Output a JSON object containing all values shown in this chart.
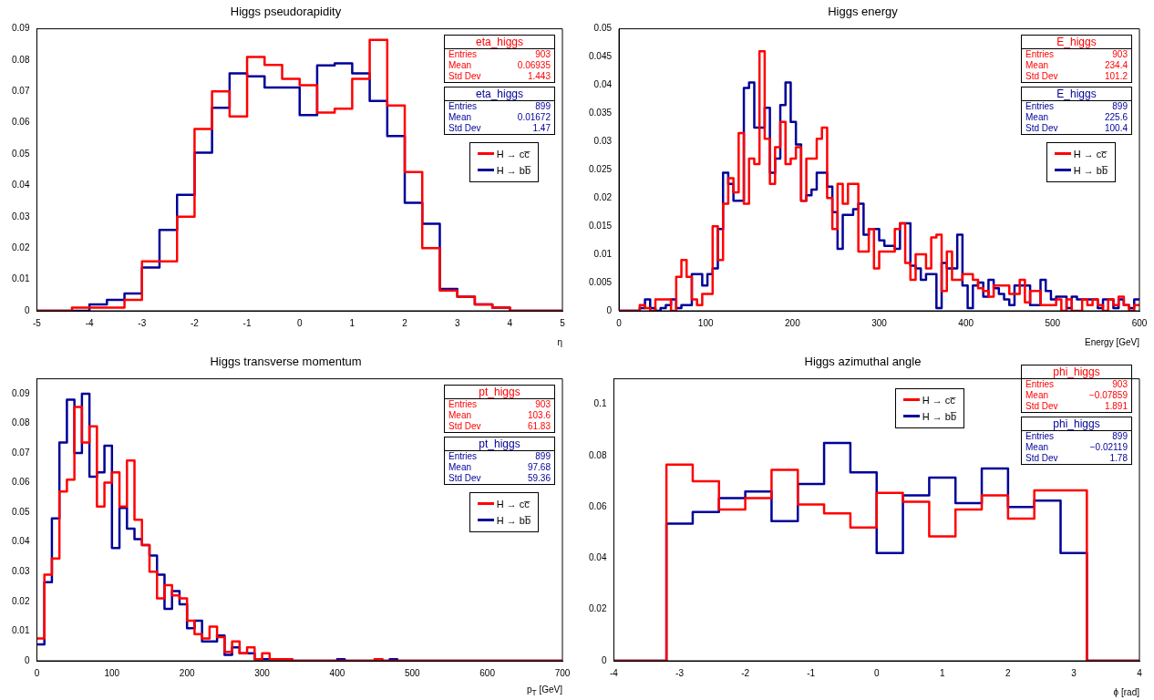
{
  "chart_data": [
    {
      "type": "histogram",
      "title": "Higgs pseudorapidity",
      "xlabel": "η",
      "legend": "right",
      "bins": [
        -5,
        -4.667,
        -4.333,
        -4,
        -3.667,
        -3.333,
        -3,
        -2.667,
        -2.333,
        -2,
        -1.667,
        -1.333,
        -1,
        -0.667,
        -0.333,
        0,
        0.333,
        0.667,
        1,
        1.333,
        1.667,
        2,
        2.333,
        2.667,
        3,
        3.333,
        3.667,
        4,
        4.333,
        4.667,
        5
      ],
      "series": [
        {
          "name": "H → cc̅",
          "color": "#ff0000",
          "values": [
            0,
            0,
            0.001,
            0.001,
            0.001,
            0.0035,
            0.0158,
            0.0158,
            0.03,
            0.058,
            0.07,
            0.062,
            0.081,
            0.0785,
            0.074,
            0.072,
            0.0633,
            0.0645,
            0.074,
            0.0865,
            0.0655,
            0.0443,
            0.02,
            0.0065,
            0.0045,
            0.002,
            0.001,
            0,
            0,
            0
          ]
        },
        {
          "name": "H → bb̅",
          "color": "#000099",
          "values": [
            0,
            0,
            0,
            0.002,
            0.0035,
            0.0055,
            0.0138,
            0.0258,
            0.037,
            0.0505,
            0.0648,
            0.0758,
            0.0748,
            0.0713,
            0.0713,
            0.0625,
            0.0783,
            0.079,
            0.0758,
            0.067,
            0.0558,
            0.0345,
            0.0278,
            0.007,
            0.0045,
            0.002,
            0.001,
            0,
            0,
            0
          ]
        }
      ],
      "xlim": [
        -5,
        5
      ],
      "xticks": [
        -5,
        -4,
        -3,
        -2,
        -1,
        0,
        1,
        2,
        3,
        4,
        5
      ],
      "ylim": [
        0,
        0.09
      ],
      "yticks": [
        0,
        0.01,
        0.02,
        0.03,
        0.04,
        0.05,
        0.06,
        0.07,
        0.08,
        0.09
      ],
      "annotations": [
        "eta_higgs",
        "Entries",
        "903",
        "Mean",
        "0.06935",
        "Std Dev",
        "1.443",
        "eta_higgs",
        "Entries",
        "899",
        "Mean",
        "0.01672",
        "Std Dev",
        "1.47"
      ]
    },
    {
      "type": "histogram",
      "title": "Higgs energy",
      "xlabel": "Energy [GeV]",
      "legend": "right",
      "bins": [
        0,
        6,
        12,
        18,
        24,
        30,
        36,
        42,
        48,
        54,
        60,
        66,
        72,
        78,
        84,
        90,
        96,
        102,
        108,
        114,
        120,
        126,
        132,
        138,
        144,
        150,
        156,
        162,
        168,
        174,
        180,
        186,
        192,
        198,
        204,
        210,
        216,
        222,
        228,
        234,
        240,
        246,
        252,
        258,
        264,
        270,
        276,
        282,
        288,
        294,
        300,
        306,
        312,
        318,
        324,
        330,
        336,
        342,
        348,
        354,
        360,
        366,
        372,
        378,
        384,
        390,
        396,
        402,
        408,
        414,
        420,
        426,
        432,
        438,
        444,
        450,
        456,
        462,
        468,
        474,
        480,
        486,
        492,
        498,
        504,
        510,
        516,
        522,
        528,
        534,
        540,
        546,
        552,
        558,
        564,
        570,
        576,
        582,
        588,
        594,
        600
      ],
      "series": [
        {
          "name": "H → cc̅",
          "color": "#ff0000",
          "values": [
            0,
            0,
            0,
            0,
            0.001,
            0.0005,
            0,
            0.002,
            0.002,
            0.002,
            0,
            0.006,
            0.009,
            0.006,
            0.002,
            0.001,
            0.003,
            0.003,
            0.015,
            0.009,
            0.019,
            0.0235,
            0.021,
            0.0315,
            0.019,
            0.027,
            0.026,
            0.046,
            0.0305,
            0.0225,
            0.029,
            0.0335,
            0.026,
            0.027,
            0.029,
            0.0195,
            0.027,
            0.027,
            0.0305,
            0.0325,
            0.02,
            0.0145,
            0.0225,
            0.019,
            0.0225,
            0.0225,
            0.0105,
            0.0105,
            0.0145,
            0.0075,
            0.0105,
            0.0105,
            0.0105,
            0.0145,
            0.0155,
            0.0085,
            0.0055,
            0.01,
            0.01,
            0.0075,
            0.013,
            0.0135,
            0.0035,
            0.0105,
            0.0055,
            0.0055,
            0.0065,
            0.0065,
            0.0055,
            0.004,
            0.0035,
            0.0025,
            0.0045,
            0.0045,
            0.0045,
            0.003,
            0.003,
            0.0055,
            0.0015,
            0.0035,
            0.0035,
            0.001,
            0.001,
            0.001,
            0.002,
            0,
            0.002,
            0,
            0,
            0.002,
            0.001,
            0.002,
            0.001,
            0,
            0.002,
            0.001,
            0.0025,
            0.001,
            0,
            0.001
          ]
        },
        {
          "name": "H → bb̅",
          "color": "#000099",
          "values": [
            0,
            0,
            0,
            0,
            0.0005,
            0.002,
            0.0005,
            0,
            0.0005,
            0.001,
            0.002,
            0.0005,
            0.001,
            0.001,
            0.0065,
            0.0065,
            0.0045,
            0.0065,
            0.0075,
            0.0145,
            0.0245,
            0.0225,
            0.0195,
            0.0195,
            0.0395,
            0.0405,
            0.0325,
            0.0325,
            0.036,
            0.0245,
            0.027,
            0.0365,
            0.0405,
            0.0335,
            0.0295,
            0.0195,
            0.0205,
            0.0215,
            0.0245,
            0.0245,
            0.022,
            0.0175,
            0.011,
            0.017,
            0.017,
            0.018,
            0.019,
            0.0135,
            0.0145,
            0.0145,
            0.0125,
            0.0115,
            0.0115,
            0.011,
            0.0155,
            0.0155,
            0.008,
            0.0075,
            0.0055,
            0.0065,
            0.0065,
            0.0005,
            0.0085,
            0.0075,
            0.0075,
            0.0135,
            0.0045,
            0.0005,
            0.0045,
            0.005,
            0.0025,
            0.0055,
            0.004,
            0.003,
            0.002,
            0.001,
            0.0045,
            0.0045,
            0.0045,
            0.001,
            0.001,
            0.0055,
            0.0035,
            0.002,
            0.0025,
            0.0025,
            0.0005,
            0.0025,
            0.002,
            0.002,
            0.002,
            0.002,
            0.0005,
            0.002,
            0.002,
            0.0005,
            0.002,
            0.001,
            0.0005,
            0.002
          ]
        }
      ],
      "xlim": [
        0,
        600
      ],
      "xticks": [
        0,
        100,
        200,
        300,
        400,
        500,
        600
      ],
      "ylim": [
        0,
        0.05
      ],
      "yticks": [
        0,
        0.005,
        0.01,
        0.015,
        0.02,
        0.025,
        0.03,
        0.035,
        0.04,
        0.045,
        0.05
      ],
      "annotations": [
        "E_higgs",
        "Entries",
        "903",
        "Mean",
        "234.4",
        "Std Dev",
        "101.2",
        "E_higgs",
        "Entries",
        "899",
        "Mean",
        "225.6",
        "Std Dev",
        "100.4"
      ]
    },
    {
      "type": "histogram",
      "title": "Higgs transverse momentum",
      "xlabel": "p$_{T}$ [GeV]",
      "legend": "right",
      "bins": [
        0,
        10,
        20,
        30,
        40,
        50,
        60,
        70,
        80,
        90,
        100,
        110,
        120,
        130,
        140,
        150,
        160,
        170,
        180,
        190,
        200,
        210,
        220,
        230,
        240,
        250,
        260,
        270,
        280,
        290,
        300,
        310,
        320,
        330,
        340,
        350,
        360,
        370,
        380,
        390,
        400,
        410,
        420,
        430,
        440,
        450,
        460,
        470,
        480,
        490,
        500,
        510,
        520,
        530,
        540,
        550,
        560,
        570,
        580,
        590,
        600,
        610,
        620,
        630,
        640,
        650,
        660,
        670,
        680,
        690,
        700
      ],
      "series": [
        {
          "name": "H → cc̅",
          "color": "#ff0000",
          "values": [
            0.0075,
            0.029,
            0.0345,
            0.057,
            0.061,
            0.0855,
            0.0735,
            0.079,
            0.052,
            0.06,
            0.0635,
            0.052,
            0.0675,
            0.0475,
            0.039,
            0.03,
            0.021,
            0.0255,
            0.022,
            0.021,
            0.0135,
            0.009,
            0.0075,
            0.0115,
            0.008,
            0.003,
            0.0065,
            0.0025,
            0.0045,
            0.0005,
            0.0025,
            0.0005,
            0.0005,
            0.0005,
            0,
            0,
            0,
            0,
            0,
            0,
            0,
            0,
            0,
            0,
            0,
            0.0005,
            0,
            0,
            0,
            0,
            0,
            0,
            0,
            0,
            0,
            0,
            0,
            0,
            0,
            0,
            0,
            0,
            0,
            0,
            0,
            0,
            0,
            0,
            0,
            0
          ]
        },
        {
          "name": "H → bb̅",
          "color": "#000099",
          "values": [
            0.0055,
            0.0265,
            0.048,
            0.0735,
            0.088,
            0.07,
            0.09,
            0.062,
            0.0635,
            0.0725,
            0.038,
            0.0515,
            0.0445,
            0.041,
            0.039,
            0.0355,
            0.029,
            0.0175,
            0.0235,
            0.019,
            0.011,
            0.0135,
            0.0065,
            0.0065,
            0.0085,
            0.002,
            0.0045,
            0.0025,
            0.0025,
            0.0005,
            0.0005,
            0.0005,
            0.0005,
            0.0005,
            0,
            0,
            0,
            0,
            0,
            0,
            0.0005,
            0,
            0,
            0,
            0,
            0.0005,
            0,
            0.0005,
            0,
            0,
            0,
            0,
            0,
            0,
            0,
            0,
            0,
            0,
            0,
            0,
            0,
            0,
            0,
            0,
            0,
            0,
            0,
            0,
            0,
            0
          ]
        }
      ],
      "xlim": [
        0,
        700
      ],
      "xticks": [
        0,
        100,
        200,
        300,
        400,
        500,
        600,
        700
      ],
      "ylim": [
        0,
        0.095
      ],
      "yticks": [
        0,
        0.01,
        0.02,
        0.03,
        0.04,
        0.05,
        0.06,
        0.07,
        0.08,
        0.09
      ],
      "annotations": [
        "pt_higgs",
        "Entries",
        "903",
        "Mean",
        "103.6",
        "Std Dev",
        "61.83",
        "pt_higgs",
        "Entries",
        "899",
        "Mean",
        "97.68",
        "Std Dev",
        "59.36"
      ]
    },
    {
      "type": "histogram",
      "title": "Higgs azimuthal angle",
      "xlabel": "ϕ [rad]",
      "legend": "top",
      "bins": [
        -4,
        -3.6,
        -3.2,
        -2.8,
        -2.4,
        -2,
        -1.6,
        -1.2,
        -0.8,
        -0.4,
        0,
        0.4,
        0.8,
        1.2,
        1.6,
        2,
        2.4,
        2.8,
        3.2,
        3.6,
        4
      ],
      "series": [
        {
          "name": "H → cc̅",
          "color": "#ff0000",
          "values": [
            0,
            0,
            0.0765,
            0.07,
            0.059,
            0.0635,
            0.0745,
            0.061,
            0.0575,
            0.052,
            0.0655,
            0.062,
            0.0485,
            0.059,
            0.0645,
            0.0555,
            0.0665,
            0.0665,
            0,
            0
          ]
        },
        {
          "name": "H → bb̅",
          "color": "#000099",
          "values": [
            0,
            0,
            0.0535,
            0.058,
            0.0635,
            0.066,
            0.0545,
            0.069,
            0.085,
            0.0735,
            0.042,
            0.0645,
            0.0715,
            0.0615,
            0.075,
            0.06,
            0.0625,
            0.042,
            0,
            0
          ]
        }
      ],
      "xlim": [
        -4,
        4
      ],
      "xticks": [
        -4,
        -3,
        -2,
        -1,
        0,
        1,
        2,
        3,
        4
      ],
      "ylim": [
        0,
        0.11
      ],
      "yticks": [
        0,
        0.02,
        0.04,
        0.06,
        0.08,
        0.1
      ],
      "annotations": [
        "phi_higgs",
        "Entries",
        "903",
        "Mean",
        "−0.07859",
        "Std Dev",
        "1.891",
        "phi_higgs",
        "Entries",
        "899",
        "Mean",
        "−0.02119",
        "Std Dev",
        "1.78"
      ]
    }
  ]
}
